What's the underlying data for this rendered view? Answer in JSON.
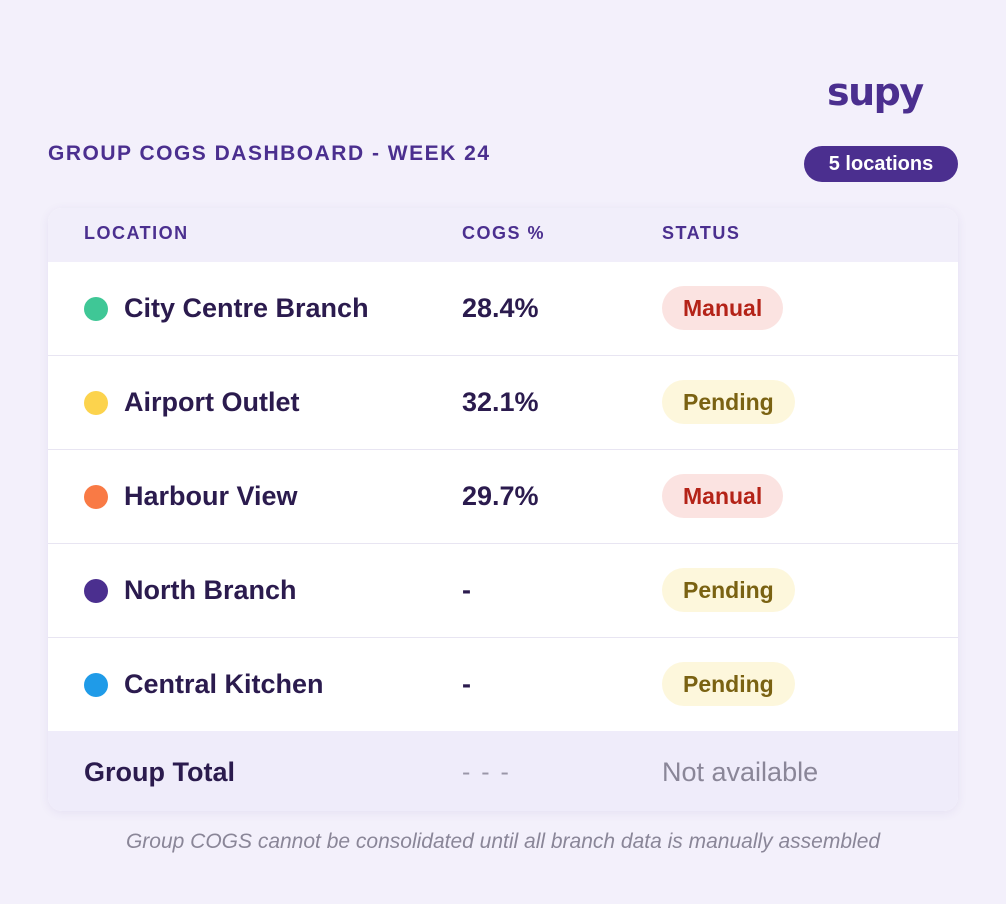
{
  "brand": {
    "logo_text": "supy"
  },
  "header": {
    "title": "GROUP COGS DASHBOARD - WEEK 24",
    "location_count": "5 locations"
  },
  "table": {
    "columns": [
      "LOCATION",
      "COGS %",
      "STATUS"
    ],
    "rows": [
      {
        "location": "City Centre Branch",
        "cogs": "28.4%",
        "status": "Manual",
        "status_type": "manual",
        "dot_color": "#3fc796"
      },
      {
        "location": "Airport Outlet",
        "cogs": "32.1%",
        "status": "Pending",
        "status_type": "pending",
        "dot_color": "#fcd34d"
      },
      {
        "location": "Harbour View",
        "cogs": "29.7%",
        "status": "Manual",
        "status_type": "manual",
        "dot_color": "#f97a45"
      },
      {
        "location": "North Branch",
        "cogs": "-",
        "status": "Pending",
        "status_type": "pending",
        "dot_color": "#4b2f8f"
      },
      {
        "location": "Central Kitchen",
        "cogs": "-",
        "status": "Pending",
        "status_type": "pending",
        "dot_color": "#1f9be8"
      }
    ],
    "total": {
      "label": "Group Total",
      "cogs": "- - -",
      "status": "Not available"
    }
  },
  "footnote": "Group COGS cannot be consolidated until all branch data is manually assembled",
  "colors": {
    "brand": "#4b2f8f",
    "manual_bg": "#fbe3e1",
    "manual_text": "#b42318",
    "pending_bg": "#fdf7dc",
    "pending_text": "#7a6212"
  }
}
